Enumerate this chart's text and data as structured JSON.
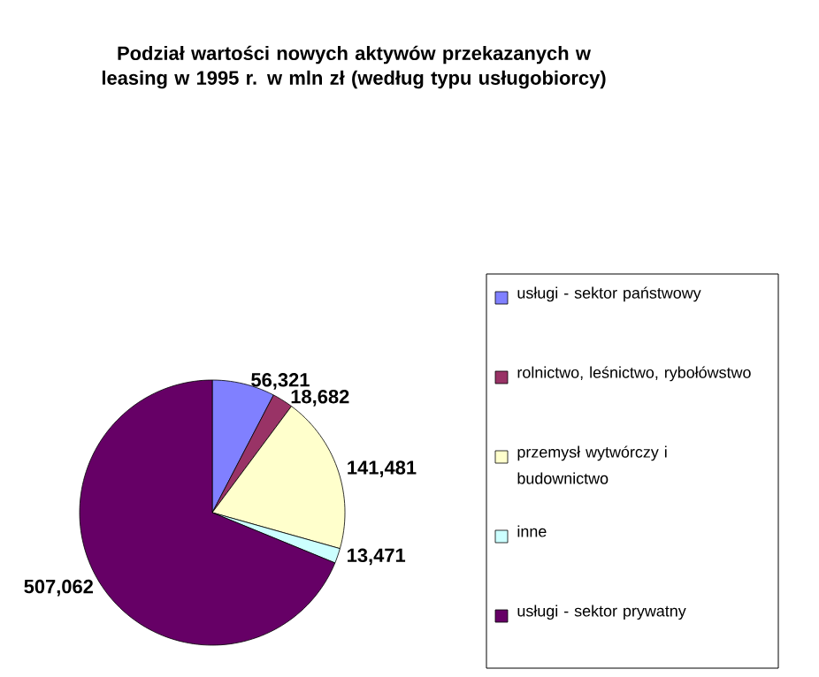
{
  "chart_data": {
    "type": "pie",
    "title": "Podział wartości nowych aktywów przekazanych w leasing w 1995 r. w mln zł (według typu usługobiorcy)",
    "categories": [
      "usługi - sektor państwowy",
      "rolnictwo, leśnictwo, rybołówstwo",
      "przemysł wytwórczy i budownictwo",
      "inne",
      "usługi - sektor prywatny"
    ],
    "values": [
      56321,
      18682,
      141481,
      13471,
      507062
    ],
    "value_labels": [
      "56,321",
      "18,682",
      "141,481",
      "13,471",
      "507,062"
    ],
    "colors": [
      "#8080ff",
      "#993366",
      "#ffffcc",
      "#ccffff",
      "#660066"
    ],
    "legend": "right"
  }
}
